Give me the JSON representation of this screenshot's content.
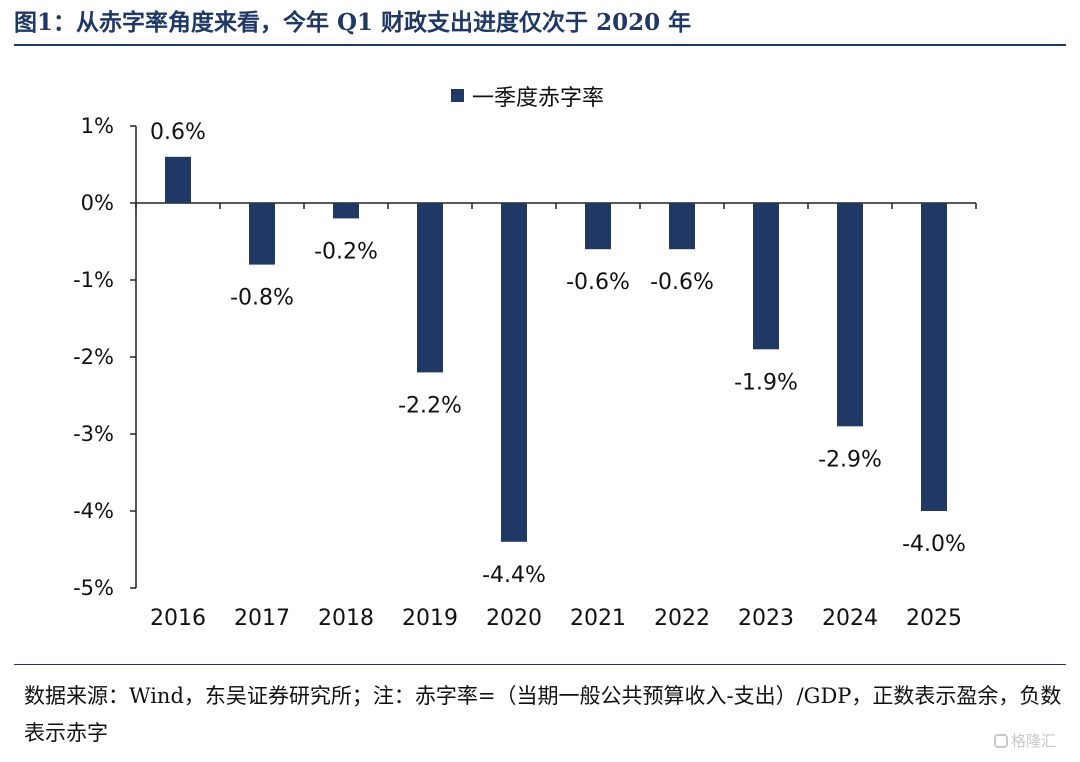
{
  "title": "图1：从赤字率角度来看，今年 Q1 财政支出进度仅次于 2020 年",
  "note": "数据来源：Wind，东吴证券研究所；注：赤字率=（当期一般公共预算收入-支出）/GDP，正数表示盈余，负数表示赤字",
  "watermark": "格隆汇",
  "colors": {
    "bar": "#1f3864",
    "title": "#1f3864",
    "axis": "#222222"
  },
  "chart_data": {
    "type": "bar",
    "categories": [
      "2016",
      "2017",
      "2018",
      "2019",
      "2020",
      "2021",
      "2022",
      "2023",
      "2024",
      "2025"
    ],
    "series": [
      {
        "name": "一季度赤字率",
        "values": [
          0.6,
          -0.8,
          -0.2,
          -2.2,
          -4.4,
          -0.6,
          -0.6,
          -1.9,
          -2.9,
          -4.0
        ],
        "labels": [
          "0.6%",
          "-0.8%",
          "-0.2%",
          "-2.2%",
          "-4.4%",
          "-0.6%",
          "-0.6%",
          "-1.9%",
          "-2.9%",
          "-4.0%"
        ]
      }
    ],
    "ylim": [
      -5,
      1
    ],
    "yticks": [
      1,
      0,
      -1,
      -2,
      -3,
      -4,
      -5
    ],
    "ytick_labels": [
      "1%",
      "0%",
      "-1%",
      "-2%",
      "-3%",
      "-4%",
      "-5%"
    ],
    "legend_position": "top-center",
    "grid": false
  }
}
